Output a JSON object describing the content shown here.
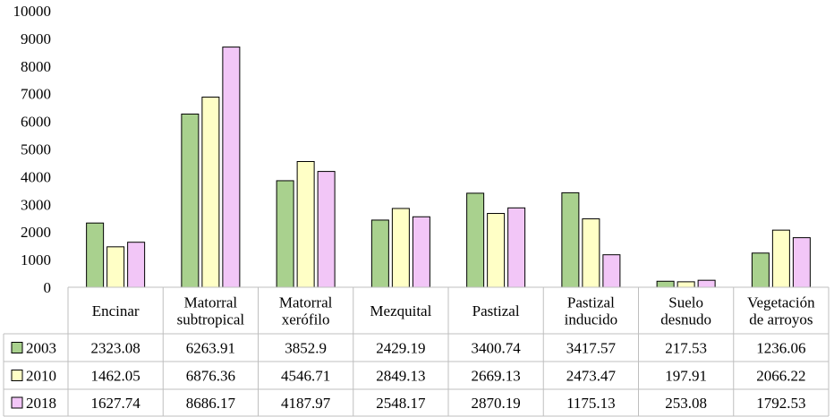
{
  "chart_data": {
    "type": "bar",
    "title": "",
    "xlabel": "",
    "ylabel": "",
    "ylim": [
      0,
      10000
    ],
    "yticks": [
      0,
      1000,
      2000,
      3000,
      4000,
      5000,
      6000,
      7000,
      8000,
      9000,
      10000
    ],
    "grid": false,
    "legend": "data-table",
    "categories": [
      [
        "Encinar"
      ],
      [
        "Matorral",
        "subtropical"
      ],
      [
        "Matorral",
        "xerófilo"
      ],
      [
        "Mezquital"
      ],
      [
        "Pastizal"
      ],
      [
        "Pastizal",
        "inducido"
      ],
      [
        "Suelo",
        "desnudo"
      ],
      [
        "Vegetación",
        "de arroyos"
      ]
    ],
    "series": [
      {
        "name": "2003",
        "color": "#a9d18e",
        "values": [
          2323.08,
          6263.91,
          3852.9,
          2429.19,
          3400.74,
          3417.57,
          217.53,
          1236.06
        ],
        "labels": [
          "2323.08",
          "6263.91",
          "3852.9",
          "2429.19",
          "3400.74",
          "3417.57",
          "217.53",
          "1236.06"
        ]
      },
      {
        "name": "2010",
        "color": "#ffffc6",
        "values": [
          1462.05,
          6876.36,
          4546.71,
          2849.13,
          2669.13,
          2473.47,
          197.91,
          2066.22
        ],
        "labels": [
          "1462.05",
          "6876.36",
          "4546.71",
          "2849.13",
          "2669.13",
          "2473.47",
          "197.91",
          "2066.22"
        ]
      },
      {
        "name": "2018",
        "color": "#f2c6f7",
        "values": [
          1627.74,
          8686.17,
          4187.97,
          2548.17,
          2870.19,
          1175.13,
          253.08,
          1792.53
        ],
        "labels": [
          "1627.74",
          "8686.17",
          "4187.97",
          "2548.17",
          "2870.19",
          "1175.13",
          "253.08",
          "1792.53"
        ]
      }
    ]
  }
}
